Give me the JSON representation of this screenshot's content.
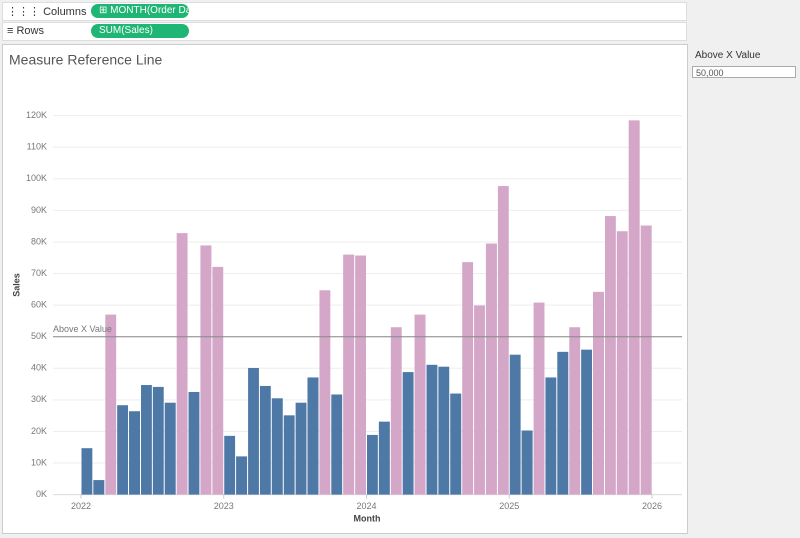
{
  "shelves": {
    "columns": {
      "label": "Columns",
      "pill": "MONTH(Order Da.."
    },
    "rows": {
      "label": "Rows",
      "pill": "SUM(Sales)"
    }
  },
  "parameter_panel": {
    "title": "Above X Value",
    "value": "50,000"
  },
  "chart_data": {
    "type": "bar",
    "title": "Measure Reference Line",
    "x_label": "Month",
    "y_label": "Sales",
    "x": [
      2022,
      2022.083,
      2022.167,
      2022.25,
      2022.333,
      2022.417,
      2022.5,
      2022.583,
      2022.667,
      2022.75,
      2022.833,
      2022.917,
      2023,
      2023.083,
      2023.167,
      2023.25,
      2023.333,
      2023.417,
      2023.5,
      2023.583,
      2023.667,
      2023.75,
      2023.833,
      2023.917,
      2024,
      2024.083,
      2024.167,
      2024.25,
      2024.333,
      2024.417,
      2024.5,
      2024.583,
      2024.667,
      2024.75,
      2024.833,
      2024.917,
      2025,
      2025.083,
      2025.167,
      2025.25,
      2025.333,
      2025.417,
      2025.5,
      2025.583,
      2025.667,
      2025.75,
      2025.833,
      2025.917
    ],
    "values": [
      14700,
      4600,
      57000,
      28300,
      26400,
      34700,
      34100,
      29100,
      82800,
      32500,
      78900,
      72100,
      18600,
      12100,
      40100,
      34400,
      30500,
      25100,
      29100,
      37100,
      64700,
      31700,
      76000,
      75700,
      18900,
      23100,
      53000,
      38800,
      57000,
      41100,
      40500,
      32000,
      73600,
      59900,
      79500,
      97700,
      44300,
      20300,
      60800,
      37100,
      45200,
      53000,
      45900,
      64200,
      88200,
      83400,
      118500,
      85200
    ],
    "color_below": "#4e79a7",
    "color_above": "#d4a6c8",
    "reference_line": {
      "value": 50000,
      "label": "Above X Value"
    },
    "xlim": [
      2021.804,
      2026.21
    ],
    "xticks": [
      2022,
      2023,
      2024,
      2025,
      2026
    ],
    "ylim": [
      0,
      131600
    ],
    "yticks": [
      {
        "value": 0,
        "label": "0K"
      },
      {
        "value": 10000,
        "label": "10K"
      },
      {
        "value": 20000,
        "label": "20K"
      },
      {
        "value": 30000,
        "label": "30K"
      },
      {
        "value": 40000,
        "label": "40K"
      },
      {
        "value": 50000,
        "label": "50K"
      },
      {
        "value": 60000,
        "label": "60K"
      },
      {
        "value": 70000,
        "label": "70K"
      },
      {
        "value": 80000,
        "label": "80K"
      },
      {
        "value": 90000,
        "label": "90K"
      },
      {
        "value": 100000,
        "label": "100K"
      },
      {
        "value": 110000,
        "label": "110K"
      },
      {
        "value": 120000,
        "label": "120K"
      }
    ],
    "grid": true
  }
}
